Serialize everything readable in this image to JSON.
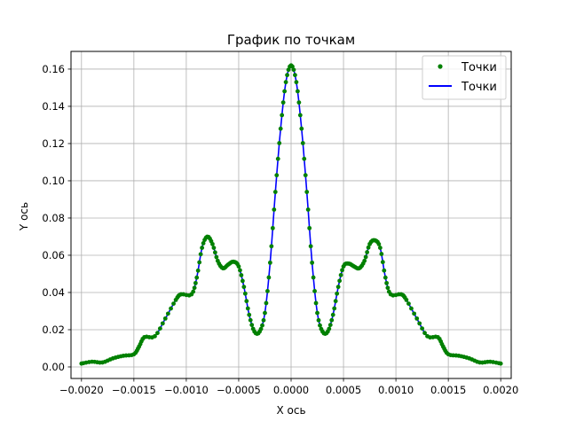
{
  "chart_data": {
    "type": "line",
    "title": "График по точкам",
    "xlabel": "X ось",
    "ylabel": "Y ось",
    "xlim": [
      -0.0021,
      0.0021
    ],
    "ylim": [
      -0.0062,
      0.1695
    ],
    "grid": true,
    "legend_position": "top-right",
    "xticks": [
      -0.002,
      -0.0015,
      -0.001,
      -0.0005,
      0.0,
      0.0005,
      0.001,
      0.0015,
      0.002
    ],
    "xtick_labels": [
      "−0.0020",
      "−0.0015",
      "−0.0010",
      "−0.0005",
      "0.0000",
      "0.0005",
      "0.0010",
      "0.0015",
      "0.0020"
    ],
    "yticks": [
      0.0,
      0.02,
      0.04,
      0.06,
      0.08,
      0.1,
      0.12,
      0.14,
      0.16
    ],
    "ytick_labels": [
      "0.00",
      "0.02",
      "0.04",
      "0.06",
      "0.08",
      "0.10",
      "0.12",
      "0.14",
      "0.16"
    ],
    "series": [
      {
        "name": "Точки",
        "style": "points",
        "color": "#008000"
      },
      {
        "name": "Точки",
        "style": "line",
        "color": "#0000ff"
      }
    ],
    "points": [
      [
        -0.002,
        0.0018
      ],
      [
        -0.0019,
        0.0028
      ],
      [
        -0.0018,
        0.0024
      ],
      [
        -0.0017,
        0.0046
      ],
      [
        -0.0016,
        0.006
      ],
      [
        -0.0015,
        0.0068
      ],
      [
        -0.00145,
        0.011
      ],
      [
        -0.0014,
        0.016
      ],
      [
        -0.0013,
        0.0165
      ],
      [
        -0.0012,
        0.026
      ],
      [
        -0.0011,
        0.036
      ],
      [
        -0.00105,
        0.039
      ],
      [
        -0.00095,
        0.039
      ],
      [
        -0.0009,
        0.048
      ],
      [
        -0.00085,
        0.064
      ],
      [
        -0.0008,
        0.07
      ],
      [
        -0.00075,
        0.066
      ],
      [
        -0.0007,
        0.057
      ],
      [
        -0.00065,
        0.053
      ],
      [
        -0.0006,
        0.055
      ],
      [
        -0.00055,
        0.0565
      ],
      [
        -0.0005,
        0.054
      ],
      [
        -0.00045,
        0.043
      ],
      [
        -0.0004,
        0.028
      ],
      [
        -0.00035,
        0.019
      ],
      [
        -0.0003,
        0.019
      ],
      [
        -0.00025,
        0.029
      ],
      [
        -0.0002,
        0.056
      ],
      [
        -0.00015,
        0.094
      ],
      [
        -0.0001,
        0.128
      ],
      [
        -5e-05,
        0.153
      ],
      [
        0.0,
        0.162
      ],
      [
        5e-05,
        0.153
      ],
      [
        0.0001,
        0.128
      ],
      [
        0.00015,
        0.094
      ],
      [
        0.0002,
        0.056
      ],
      [
        0.00025,
        0.029
      ],
      [
        0.0003,
        0.019
      ],
      [
        0.00035,
        0.019
      ],
      [
        0.0004,
        0.028
      ],
      [
        0.00045,
        0.043
      ],
      [
        0.0005,
        0.054
      ],
      [
        0.00055,
        0.0555
      ],
      [
        0.0006,
        0.054
      ],
      [
        0.00065,
        0.053
      ],
      [
        0.0007,
        0.057
      ],
      [
        0.00075,
        0.066
      ],
      [
        0.0008,
        0.068
      ],
      [
        0.00085,
        0.064
      ],
      [
        0.0009,
        0.048
      ],
      [
        0.00095,
        0.039
      ],
      [
        0.00105,
        0.039
      ],
      [
        0.0011,
        0.036
      ],
      [
        0.0012,
        0.026
      ],
      [
        0.0013,
        0.0165
      ],
      [
        0.0014,
        0.016
      ],
      [
        0.00145,
        0.011
      ],
      [
        0.0015,
        0.0068
      ],
      [
        0.0016,
        0.006
      ],
      [
        0.0017,
        0.0046
      ],
      [
        0.0018,
        0.0024
      ],
      [
        0.0019,
        0.0028
      ],
      [
        0.002,
        0.0018
      ]
    ]
  }
}
